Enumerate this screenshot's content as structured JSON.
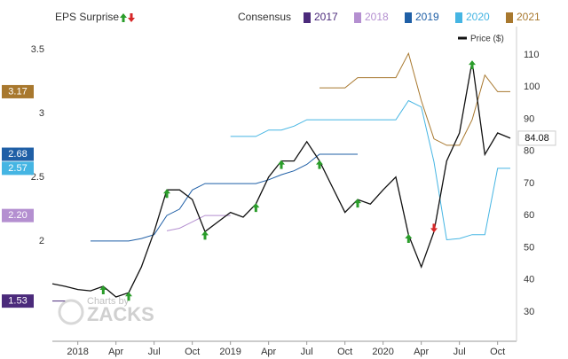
{
  "chart_data": {
    "type": "line",
    "surprise_label": "EPS Surprise",
    "consensus_label": "Consensus",
    "watermark": [
      "Charts by",
      "ZACKS"
    ],
    "x": [
      "2017-11",
      "2017-12",
      "2018-01",
      "2018-02",
      "2018-03",
      "2018-04",
      "2018-05",
      "2018-06",
      "2018-07",
      "2018-08",
      "2018-09",
      "2018-10",
      "2018-11",
      "2018-12",
      "2019-01",
      "2019-02",
      "2019-03",
      "2019-04",
      "2019-05",
      "2019-06",
      "2019-07",
      "2019-08",
      "2019-09",
      "2019-10",
      "2019-11",
      "2019-12",
      "2020-01",
      "2020-02",
      "2020-03",
      "2020-04",
      "2020-05",
      "2020-06",
      "2020-07",
      "2020-08",
      "2020-09",
      "2020-10",
      "2020-11"
    ],
    "xlim": [
      "2017-11",
      "2020-11"
    ],
    "xticks": [
      {
        "value": "2018-01",
        "label": "2018"
      },
      {
        "value": "2018-04",
        "label": "Apr"
      },
      {
        "value": "2018-07",
        "label": "Jul"
      },
      {
        "value": "2018-10",
        "label": "Oct"
      },
      {
        "value": "2019-01",
        "label": "2019"
      },
      {
        "value": "2019-04",
        "label": "Apr"
      },
      {
        "value": "2019-07",
        "label": "Jul"
      },
      {
        "value": "2019-10",
        "label": "Oct"
      },
      {
        "value": "2020-01",
        "label": "2020"
      },
      {
        "value": "2020-04",
        "label": "Apr"
      },
      {
        "value": "2020-07",
        "label": "Jul"
      },
      {
        "value": "2020-10",
        "label": "Oct"
      }
    ],
    "ylim": [
      1.215,
      3.68
    ],
    "yticks": [
      2,
      2.5,
      3,
      3.5
    ],
    "y2lim": [
      20.9,
      118.8
    ],
    "y2ticks": [
      30,
      40,
      50,
      60,
      70,
      80,
      90,
      100,
      110
    ],
    "series": [
      {
        "name": "2017",
        "color": "#4b2a7b",
        "last_value_label": "1.53",
        "values": [
          1.53,
          1.53,
          null,
          null,
          null,
          null,
          null,
          null,
          null,
          null,
          null,
          null,
          null,
          null,
          null,
          null,
          null,
          null,
          null,
          null,
          null,
          null,
          null,
          null,
          null,
          null,
          null,
          null,
          null,
          null,
          null,
          null,
          null,
          null,
          null,
          null,
          null
        ]
      },
      {
        "name": "2018",
        "color": "#b48fd0",
        "last_value_label": "2.20",
        "values": [
          null,
          null,
          null,
          null,
          null,
          null,
          null,
          null,
          null,
          2.08,
          2.1,
          2.15,
          2.2,
          2.2,
          2.2,
          null,
          null,
          null,
          null,
          null,
          null,
          null,
          null,
          null,
          null,
          null,
          null,
          null,
          null,
          null,
          null,
          null,
          null,
          null,
          null,
          null,
          null
        ]
      },
      {
        "name": "2019",
        "color": "#1f5fa6",
        "last_value_label": "2.68",
        "values": [
          null,
          null,
          null,
          2.0,
          2.0,
          2.0,
          2.0,
          2.02,
          2.05,
          2.2,
          2.25,
          2.4,
          2.45,
          2.45,
          2.45,
          2.45,
          2.45,
          2.48,
          2.52,
          2.55,
          2.6,
          2.68,
          2.68,
          2.68,
          2.68,
          null,
          null,
          null,
          null,
          null,
          null,
          null,
          null,
          null,
          null,
          null,
          null
        ]
      },
      {
        "name": "2020",
        "color": "#45b5e3",
        "last_value_label": "2.57",
        "values": [
          null,
          null,
          null,
          null,
          null,
          null,
          null,
          null,
          null,
          null,
          null,
          null,
          null,
          null,
          2.82,
          2.82,
          2.82,
          2.87,
          2.87,
          2.9,
          2.95,
          2.95,
          2.95,
          2.95,
          2.95,
          2.95,
          2.95,
          2.95,
          3.1,
          3.05,
          2.62,
          2.01,
          2.02,
          2.05,
          2.05,
          2.57,
          2.57
        ]
      },
      {
        "name": "2021",
        "color": "#a8782e",
        "last_value_label": "3.17",
        "values": [
          null,
          null,
          null,
          null,
          null,
          null,
          null,
          null,
          null,
          null,
          null,
          null,
          null,
          null,
          null,
          null,
          null,
          null,
          null,
          null,
          null,
          3.2,
          3.2,
          3.2,
          3.28,
          3.28,
          3.28,
          3.28,
          3.47,
          3.1,
          2.8,
          2.75,
          2.75,
          2.95,
          3.3,
          3.17,
          3.17
        ]
      },
      {
        "name": "Price ($)",
        "color": "#111111",
        "axis": "y2",
        "last_value_label": "84.08",
        "values": [
          38.8,
          38,
          37,
          36.6,
          38,
          34.7,
          36,
          44,
          55,
          68,
          68,
          65,
          55,
          58,
          61,
          59.5,
          63.6,
          72,
          77,
          77,
          83,
          77,
          69,
          61,
          65,
          63.6,
          68,
          72,
          54,
          44,
          55,
          77,
          85.7,
          108,
          79,
          85.7,
          84.08
        ]
      }
    ],
    "surprises": {
      "up_color": "#2a9d2a",
      "down_color": "#d62728",
      "events": [
        {
          "x": "2018-03",
          "direction": "up"
        },
        {
          "x": "2018-05",
          "direction": "up"
        },
        {
          "x": "2018-08",
          "direction": "up"
        },
        {
          "x": "2018-11",
          "direction": "up"
        },
        {
          "x": "2019-03",
          "direction": "up"
        },
        {
          "x": "2019-05",
          "direction": "up"
        },
        {
          "x": "2019-08",
          "direction": "up"
        },
        {
          "x": "2019-11",
          "direction": "up"
        },
        {
          "x": "2020-03",
          "direction": "up"
        },
        {
          "x": "2020-05",
          "direction": "down"
        },
        {
          "x": "2020-08",
          "direction": "up"
        }
      ]
    }
  }
}
